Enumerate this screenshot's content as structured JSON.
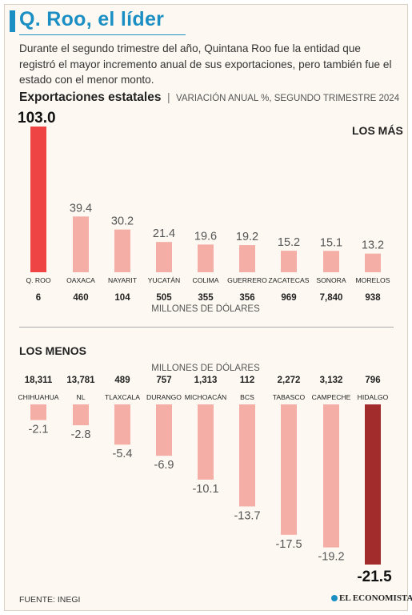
{
  "header": {
    "title": "Q. Roo, el líder",
    "subtitle": "Durante el segundo trimestre del año, Quintana Roo fue la entidad que registró el mayor incremento anual de sus exportaciones, pero también fue el estado con el menor monto."
  },
  "section": {
    "title": "Exportaciones estatales",
    "separator": "|",
    "subtitle": "VARIACIÓN ANUAL %, SEGUNDO TRIMESTRE 2024"
  },
  "labels": {
    "top_group": "LOS MÁS",
    "bottom_group": "LOS MENOS",
    "units_top": "MILLONES DE DÓLARES",
    "units_bottom": "MILLONES DE DÓLARES"
  },
  "footer": {
    "source": "FUENTE: INEGI",
    "brand": "EL ECONOMISTA"
  },
  "colors": {
    "accent": "#1b8fc4",
    "bar_light": "#f4aea6",
    "highlight_top": "#ef4444",
    "highlight_bottom": "#a22b2b"
  },
  "chart_data": [
    {
      "type": "bar",
      "title": "LOS MÁS",
      "ylabel": "VARIACIÓN ANUAL %",
      "categories": [
        "Q. ROO",
        "OAXACA",
        "NAYARIT",
        "YUCATÁN",
        "COLIMA",
        "GUERRERO",
        "ZACATECAS",
        "SONORA",
        "MORELOS"
      ],
      "values": [
        103.0,
        39.4,
        30.2,
        21.4,
        19.6,
        19.2,
        15.2,
        15.1,
        13.2
      ],
      "value_labels": [
        "103.0",
        "39.4",
        "30.2",
        "21.4",
        "19.6",
        "19.2",
        "15.2",
        "15.1",
        "13.2"
      ],
      "exports_musd": [
        "6",
        "460",
        "104",
        "505",
        "355",
        "356",
        "969",
        "7,840",
        "938"
      ],
      "exports_unit": "MILLONES DE DÓLARES",
      "highlight_index": 0
    },
    {
      "type": "bar",
      "title": "LOS MENOS",
      "ylabel": "VARIACIÓN ANUAL %",
      "categories": [
        "CHIHUAHUA",
        "NL",
        "TLAXCALA",
        "DURANGO",
        "MICHOACÁN",
        "BCS",
        "TABASCO",
        "CAMPECHE",
        "HIDALGO"
      ],
      "values": [
        -2.1,
        -2.8,
        -5.4,
        -6.9,
        -10.1,
        -13.7,
        -17.5,
        -19.2,
        -21.5
      ],
      "value_labels": [
        "-2.1",
        "-2.8",
        "-5.4",
        "-6.9",
        "-10.1",
        "-13.7",
        "-17.5",
        "-19.2",
        "-21.5"
      ],
      "exports_musd": [
        "18,311",
        "13,781",
        "489",
        "757",
        "1,313",
        "112",
        "2,272",
        "3,132",
        "796"
      ],
      "exports_unit": "MILLONES DE DÓLARES",
      "highlight_index": 8
    }
  ]
}
